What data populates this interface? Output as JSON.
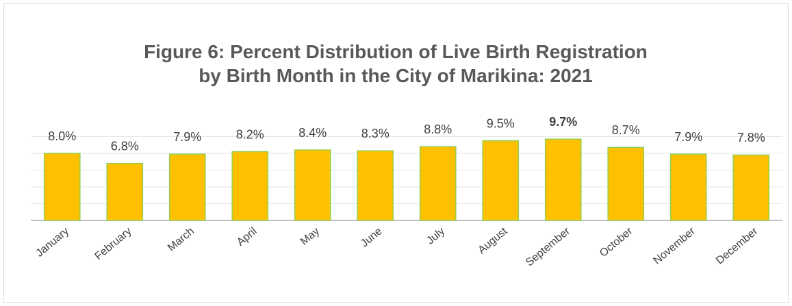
{
  "chart_data": {
    "type": "bar",
    "title": "Figure 6: Percent Distribution of Live Birth Registration by Birth Month in the City of Marikina: 2021",
    "categories": [
      "January",
      "February",
      "March",
      "April",
      "May",
      "June",
      "July",
      "August",
      "September",
      "October",
      "November",
      "December"
    ],
    "values": [
      8.0,
      6.8,
      7.9,
      8.2,
      8.4,
      8.3,
      8.8,
      9.5,
      9.7,
      8.7,
      7.9,
      7.8
    ],
    "value_labels": [
      "8.0%",
      "6.8%",
      "7.9%",
      "8.2%",
      "8.4%",
      "8.3%",
      "8.8%",
      "9.5%",
      "9.7%",
      "8.7%",
      "7.9%",
      "7.8%"
    ],
    "value_label_weights": [
      "normal",
      "normal",
      "normal",
      "normal",
      "normal",
      "normal",
      "normal",
      "normal",
      "bold",
      "normal",
      "normal",
      "normal"
    ],
    "color": "#ffc000",
    "edge_color": "#92d050",
    "ylim": [
      0,
      10
    ],
    "yticks": [
      0,
      2,
      4,
      6,
      8,
      10
    ],
    "grid": true
  }
}
